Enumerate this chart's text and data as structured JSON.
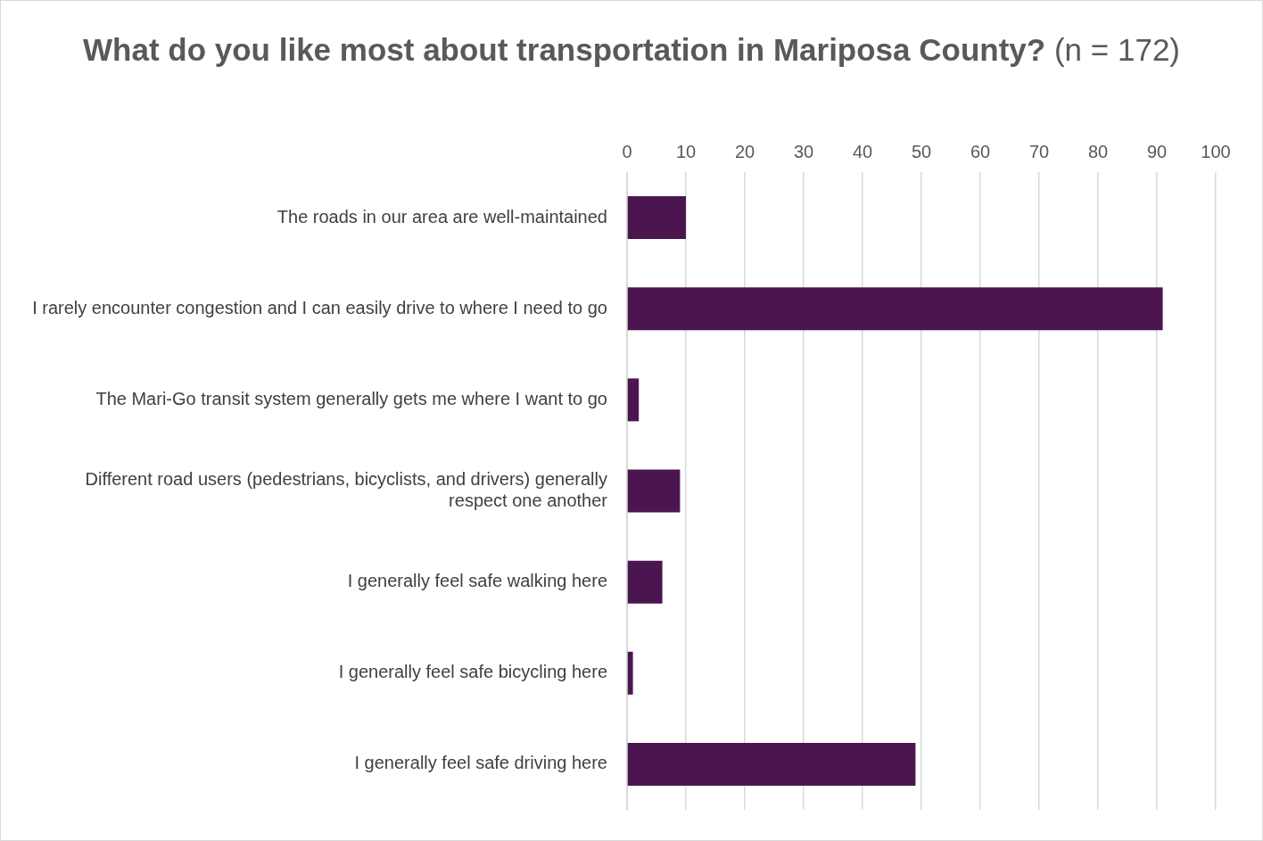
{
  "chart_data": {
    "type": "bar",
    "orientation": "horizontal",
    "title": "What do you like most about transportation in Mariposa County?",
    "subtitle": "(n = 172)",
    "categories": [
      "The roads in our area are well-maintained",
      "I rarely encounter congestion and I can easily drive to where I need to go",
      "The Mari-Go transit system generally gets me where I want to go",
      "Different road users (pedestrians, bicyclists, and drivers) generally respect one another",
      "I generally feel safe walking here",
      "I generally feel safe bicycling here",
      "I generally feel safe driving here"
    ],
    "values": [
      10,
      91,
      2,
      9,
      6,
      1,
      49
    ],
    "color": "#4b1650",
    "xlim": [
      0,
      100
    ],
    "xticks": [
      0,
      10,
      20,
      30,
      40,
      50,
      60,
      70,
      80,
      90,
      100
    ],
    "grid": "x"
  }
}
